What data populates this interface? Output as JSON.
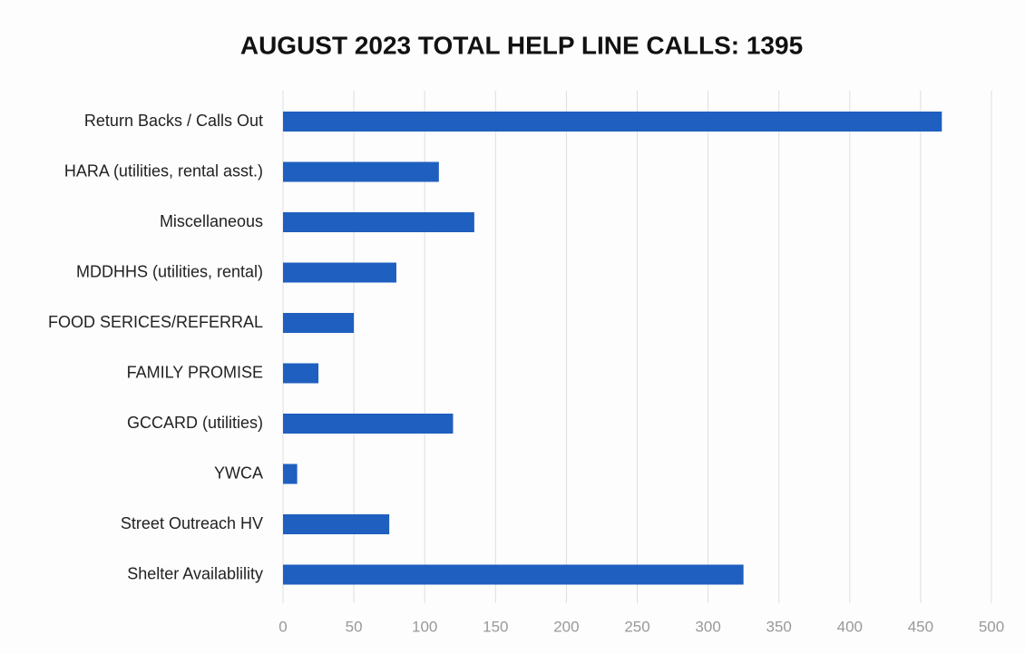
{
  "chart_data": {
    "type": "bar",
    "orientation": "horizontal",
    "title": "AUGUST 2023 TOTAL HELP LINE CALLS: 1395",
    "categories": [
      "Return Backs / Calls Out",
      "HARA (utilities, rental asst.)",
      "Miscellaneous",
      "MDDHHS (utilities, rental)",
      "FOOD SERICES/REFERRAL",
      "FAMILY PROMISE",
      "GCCARD (utilities)",
      "YWCA",
      "Street Outreach HV",
      "Shelter Availablility"
    ],
    "values": [
      465,
      110,
      135,
      80,
      50,
      25,
      120,
      10,
      75,
      325
    ],
    "color": "#1f5fbf",
    "xlim": [
      0,
      500
    ],
    "xticks": [
      0,
      50,
      100,
      150,
      200,
      250,
      300,
      350,
      400,
      450,
      500
    ],
    "grid": true
  }
}
